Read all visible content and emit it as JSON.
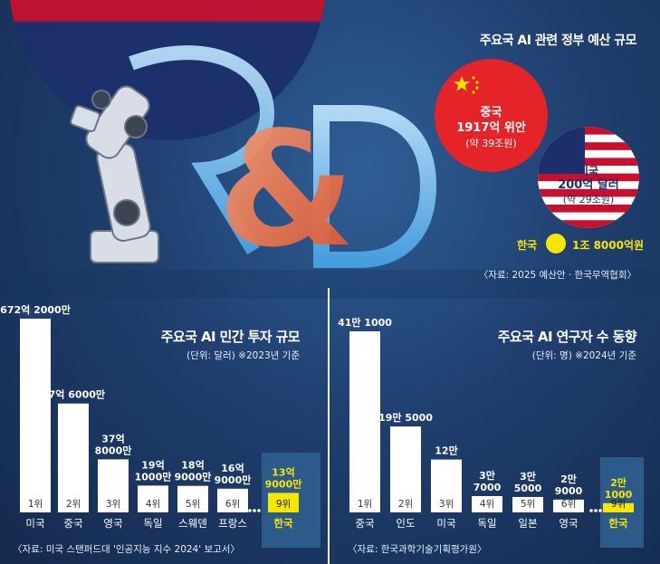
{
  "colors": {
    "background": "#1f3f6e",
    "bar": "#ffffff",
    "korea_bar": "#f6e600",
    "korea_text": "#f6e600",
    "china_red": "#e5242a",
    "panel_highlight": "#2f5f8f",
    "flag_red": "#c8102e",
    "flag_blue": "#1c2f6b"
  },
  "top": {
    "title": "주요국 AI 관련 정부 예산 규모",
    "china": {
      "name": "중국",
      "amount": "1917억 위안",
      "krw": "(약 39조원)"
    },
    "usa": {
      "name": "미국",
      "amount": "200억 달러",
      "krw": "(약 29조원)"
    },
    "korea": {
      "name": "한국",
      "amount": "1조 8000억원"
    },
    "source": "〈자료: 2025 예산안 · 한국무역협회〉"
  },
  "chart_data": [
    {
      "type": "bar",
      "title": "주요국 AI 민간 투자 규모",
      "unit_note": "(단위: 달러) ※2023년 기준",
      "categories": [
        "미국",
        "중국",
        "영국",
        "독일",
        "스웨덴",
        "프랑스",
        "한국"
      ],
      "ranks": [
        "1위",
        "2위",
        "3위",
        "4위",
        "5위",
        "6위",
        "9위"
      ],
      "values": [
        672.2,
        77.6,
        37.8,
        19.1,
        18.9,
        16.9,
        13.9
      ],
      "value_labels": [
        [
          "672억 2000만"
        ],
        [
          "77억 6000만"
        ],
        [
          "37억",
          "8000만"
        ],
        [
          "19억",
          "1000만"
        ],
        [
          "18억",
          "9000만"
        ],
        [
          "16억",
          "9000만"
        ],
        [
          "13억",
          "9000만"
        ]
      ],
      "highlight_index": 6,
      "axis_break": true,
      "source": "〈자료: 미국 스탠퍼드대 '인공지능 지수 2024' 보고서〉"
    },
    {
      "type": "bar",
      "title": "주요국 AI 연구자 수 동향",
      "unit_note": "(단위: 명) ※2024년 기준",
      "categories": [
        "중국",
        "인도",
        "미국",
        "독일",
        "일본",
        "영국",
        "한국"
      ],
      "ranks": [
        "1위",
        "2위",
        "3위",
        "4위",
        "5위",
        "6위",
        "9위"
      ],
      "values": [
        411000,
        195000,
        120000,
        37000,
        35000,
        29000,
        21000
      ],
      "value_labels": [
        [
          "41만 1000"
        ],
        [
          "19만 5000"
        ],
        [
          "12만"
        ],
        [
          "3만",
          "7000"
        ],
        [
          "3만",
          "5000"
        ],
        [
          "2만",
          "9000"
        ],
        [
          "2만",
          "1000"
        ]
      ],
      "highlight_index": 6,
      "source": "〈자료: 한국과학기술기획평가원〉"
    }
  ]
}
